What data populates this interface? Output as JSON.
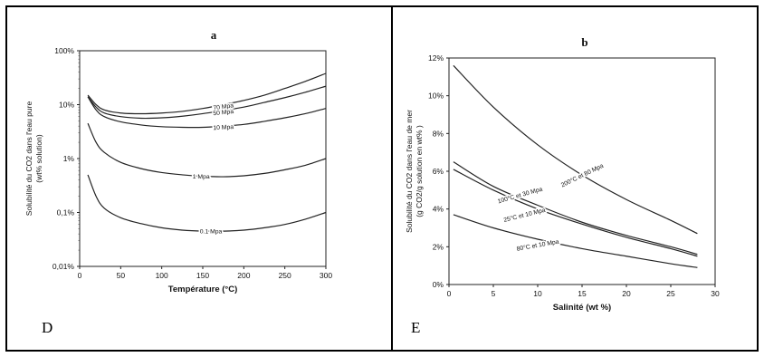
{
  "panels": [
    {
      "caption_letter": "D"
    },
    {
      "caption_letter": "E"
    }
  ],
  "chart_data": [
    {
      "type": "line",
      "title": "a",
      "xlabel": "Température (°C)",
      "ylabel": "Solubilité du CO2 dans l'eau pure (wt% solution)",
      "xlim": [
        0,
        300
      ],
      "ylim": [
        0.01,
        100
      ],
      "y_scale": "log",
      "x_ticks": [
        0,
        50,
        100,
        150,
        200,
        250,
        300
      ],
      "y_ticks": [
        0.01,
        0.1,
        1,
        10,
        100
      ],
      "y_tick_labels": [
        "0,01%",
        "0,1%",
        "1%",
        "10%",
        "100%"
      ],
      "grid": false,
      "series": [
        {
          "name": "70 Mpa",
          "x": [
            10,
            20,
            30,
            50,
            75,
            100,
            125,
            150,
            175,
            200,
            225,
            250,
            275,
            300
          ],
          "y": [
            15,
            10,
            8,
            7,
            6.8,
            7,
            7.5,
            8.5,
            10,
            12,
            15,
            20,
            27,
            38
          ]
        },
        {
          "name": "50 Mpa",
          "x": [
            10,
            20,
            30,
            50,
            75,
            100,
            125,
            150,
            175,
            200,
            225,
            250,
            275,
            300
          ],
          "y": [
            14,
            9,
            7,
            6,
            5.6,
            5.7,
            6.1,
            6.8,
            7.8,
            9,
            11,
            13.5,
            17,
            22
          ]
        },
        {
          "name": "10 Mpa",
          "x": [
            10,
            20,
            30,
            50,
            75,
            100,
            125,
            150,
            175,
            200,
            225,
            250,
            275,
            300
          ],
          "y": [
            14,
            8,
            6,
            4.8,
            4.2,
            3.9,
            3.8,
            3.8,
            4,
            4.3,
            4.9,
            5.7,
            6.8,
            8.5
          ]
        },
        {
          "name": "1 Mpa",
          "x": [
            10,
            20,
            30,
            50,
            75,
            100,
            125,
            150,
            175,
            200,
            225,
            250,
            275,
            300
          ],
          "y": [
            4.5,
            2,
            1.3,
            0.85,
            0.65,
            0.55,
            0.5,
            0.47,
            0.46,
            0.48,
            0.53,
            0.62,
            0.75,
            1
          ]
        },
        {
          "name": "0.1 Mpa",
          "x": [
            10,
            20,
            30,
            50,
            75,
            100,
            125,
            150,
            175,
            200,
            225,
            250,
            275,
            300
          ],
          "y": [
            0.5,
            0.2,
            0.12,
            0.08,
            0.062,
            0.052,
            0.047,
            0.045,
            0.045,
            0.047,
            0.052,
            0.06,
            0.075,
            0.1
          ]
        }
      ],
      "annotations": [
        {
          "text": "70 Mpa",
          "x": 175,
          "y": 9.3,
          "angle": -8
        },
        {
          "text": "50 Mpa",
          "x": 175,
          "y": 7.3,
          "angle": -6
        },
        {
          "text": "10 Mpa",
          "x": 175,
          "y": 3.85,
          "angle": -3
        },
        {
          "text": "1 Mpa",
          "x": 148,
          "y": 0.47,
          "angle": 0
        },
        {
          "text": "0.1 Mpa",
          "x": 160,
          "y": 0.045,
          "angle": 0
        }
      ]
    },
    {
      "type": "line",
      "title": "b",
      "xlabel": "Salinité (wt %)",
      "ylabel": "Solubilité du CO2 dans l'eau de mer (g CO2/g solution en wt% )",
      "xlim": [
        0,
        30
      ],
      "ylim": [
        0,
        12
      ],
      "x_ticks": [
        0,
        5,
        10,
        15,
        20,
        25,
        30
      ],
      "y_ticks": [
        0,
        2,
        4,
        6,
        8,
        10,
        12
      ],
      "y_tick_labels": [
        "0%",
        "2%",
        "4%",
        "6%",
        "8%",
        "10%",
        "12%"
      ],
      "grid": false,
      "series": [
        {
          "name": "200°C et 80 Mpa",
          "x": [
            0.5,
            5,
            10,
            15,
            20,
            25,
            28
          ],
          "y": [
            11.6,
            9.4,
            7.4,
            5.8,
            4.5,
            3.4,
            2.7
          ]
        },
        {
          "name": "100°C et 30 Mpa",
          "x": [
            0.5,
            5,
            10,
            15,
            20,
            25,
            28
          ],
          "y": [
            6.5,
            5.2,
            4.2,
            3.3,
            2.6,
            2.0,
            1.6
          ]
        },
        {
          "name": "25°C et 10 Mpa",
          "x": [
            0.5,
            5,
            10,
            15,
            20,
            25,
            28
          ],
          "y": [
            6.1,
            5.0,
            4.0,
            3.2,
            2.5,
            1.9,
            1.5
          ]
        },
        {
          "name": "80°C et 10 Mpa",
          "x": [
            0.5,
            5,
            10,
            15,
            20,
            25,
            28
          ],
          "y": [
            3.7,
            3.0,
            2.4,
            1.9,
            1.5,
            1.1,
            0.9
          ]
        }
      ],
      "annotations": [
        {
          "text": "200°C et 80 Mpa",
          "x": 15,
          "y": 5.8,
          "angle": -26
        },
        {
          "text": "100°C et 30 Mpa",
          "x": 8,
          "y": 4.75,
          "angle": -16
        },
        {
          "text": "25°C et 10 Mpa",
          "x": 8.5,
          "y": 3.7,
          "angle": -14
        },
        {
          "text": "80°C et 10 Mpa",
          "x": 10,
          "y": 2.1,
          "angle": -10
        }
      ]
    }
  ]
}
